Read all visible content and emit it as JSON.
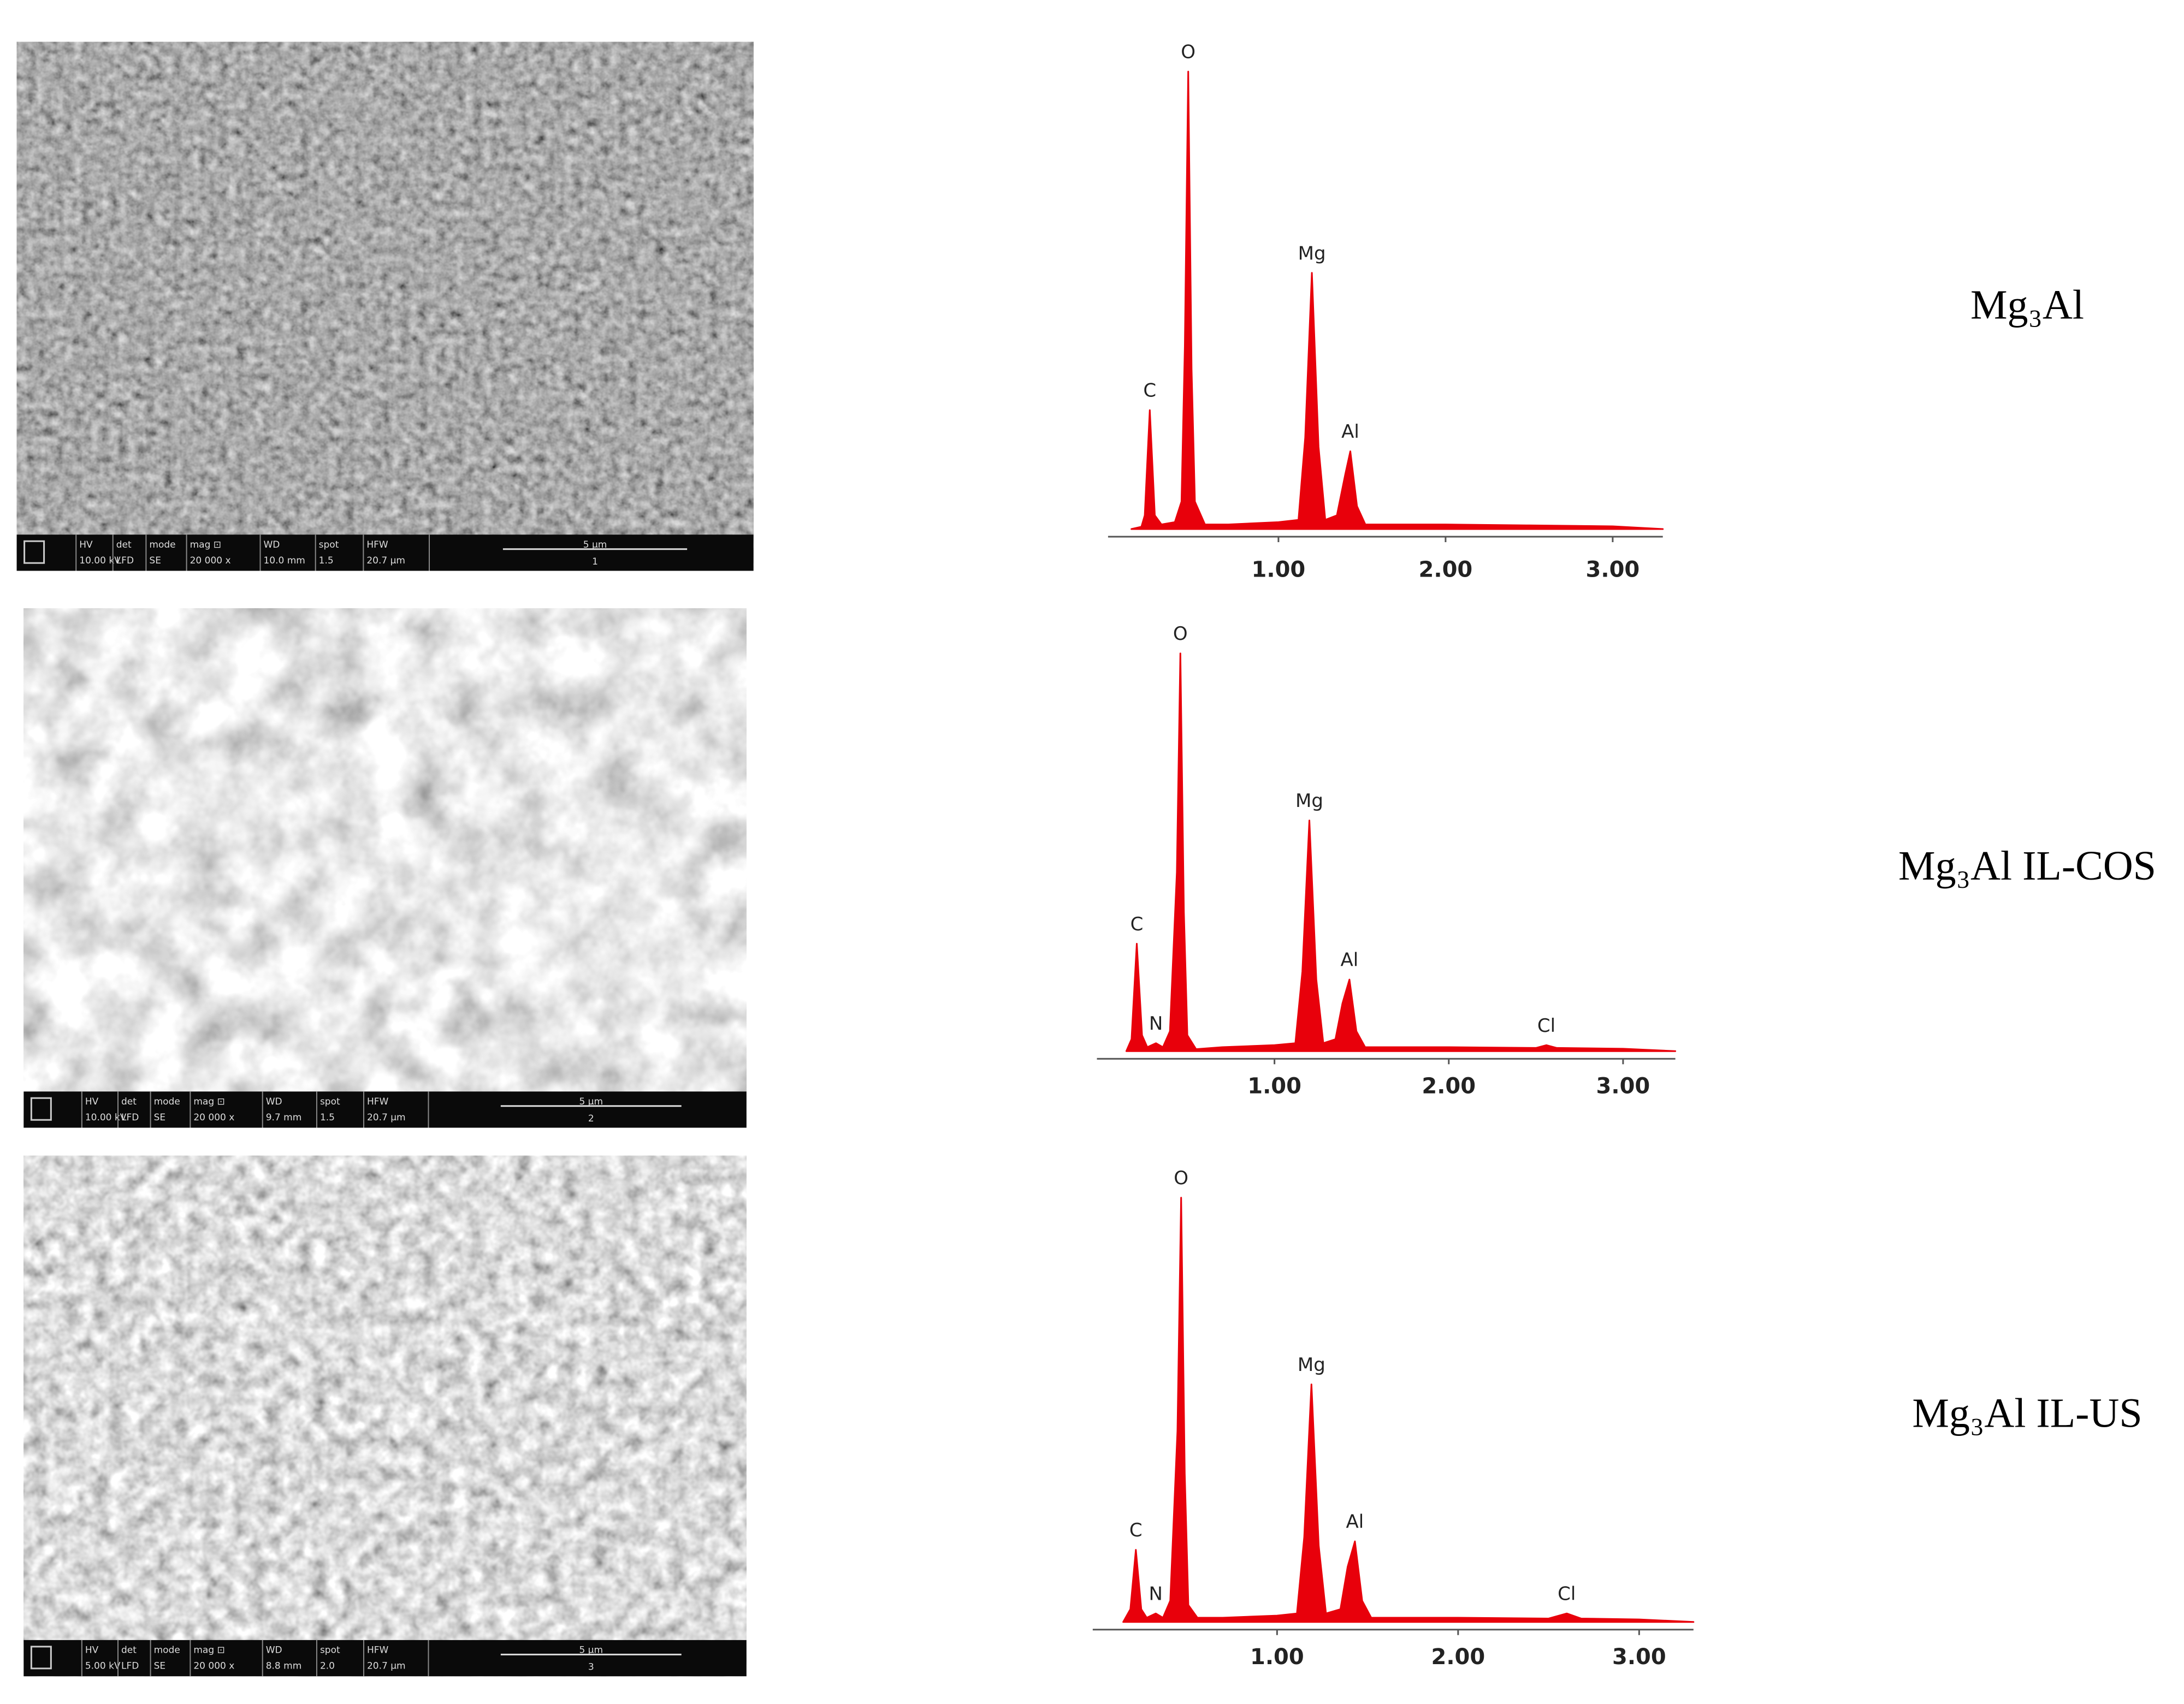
{
  "chart_data": [
    {
      "type": "area",
      "label": "Mg₃Al",
      "color": "#e8000b",
      "x": [
        0.12,
        0.18,
        0.2,
        0.23,
        0.26,
        0.3,
        0.38,
        0.42,
        0.44,
        0.46,
        0.48,
        0.5,
        0.56,
        0.7,
        1.0,
        1.12,
        1.16,
        1.2,
        1.24,
        1.28,
        1.35,
        1.4,
        1.43,
        1.47,
        1.52,
        1.7,
        2.0,
        2.5,
        3.0,
        3.3
      ],
      "y": [
        0,
        0.5,
        3,
        26,
        3,
        1,
        1.5,
        6,
        40,
        100,
        35,
        6,
        1,
        1,
        1.5,
        2,
        20,
        56,
        18,
        2,
        3,
        12,
        17,
        5,
        1,
        1,
        1,
        0.8,
        0.6,
        0
      ],
      "point_labels": [
        null,
        null,
        null,
        "C",
        null,
        null,
        null,
        null,
        null,
        "O",
        null,
        null,
        null,
        null,
        null,
        null,
        null,
        "Mg",
        null,
        null,
        null,
        null,
        "Al",
        null,
        null,
        null,
        null,
        null,
        null,
        null
      ],
      "xlim": [
        0,
        3.3
      ],
      "ylim": [
        0,
        105
      ],
      "xticks": [
        {
          "value": 1,
          "label": "1.00"
        },
        {
          "value": 2,
          "label": "2.00"
        },
        {
          "value": 3,
          "label": "3.00"
        }
      ]
    },
    {
      "type": "area",
      "label": "Mg₃Al IL-COS",
      "color": "#e8000b",
      "x": [
        0.15,
        0.18,
        0.21,
        0.24,
        0.27,
        0.32,
        0.36,
        0.4,
        0.44,
        0.46,
        0.48,
        0.5,
        0.55,
        0.7,
        1.0,
        1.12,
        1.16,
        1.2,
        1.24,
        1.28,
        1.35,
        1.39,
        1.43,
        1.47,
        1.52,
        1.7,
        2.0,
        2.5,
        2.56,
        2.62,
        3.0,
        3.3
      ],
      "y": [
        0,
        3,
        27,
        4,
        1,
        2,
        1,
        5,
        45,
        100,
        35,
        4,
        0.5,
        1,
        1.5,
        2,
        20,
        58,
        18,
        2,
        3,
        12,
        18,
        5,
        1,
        1,
        1,
        0.8,
        1.5,
        0.8,
        0.6,
        0
      ],
      "point_labels": [
        null,
        null,
        "C",
        null,
        null,
        "N",
        null,
        null,
        null,
        "O",
        null,
        null,
        null,
        null,
        null,
        null,
        null,
        "Mg",
        null,
        null,
        null,
        null,
        "Al",
        null,
        null,
        null,
        null,
        null,
        "Cl",
        null,
        null,
        null
      ],
      "xlim": [
        0,
        3.3
      ],
      "ylim": [
        0,
        105
      ],
      "xticks": [
        {
          "value": 1,
          "label": "1.00"
        },
        {
          "value": 2,
          "label": "2.00"
        },
        {
          "value": 3,
          "label": "3.00"
        }
      ]
    },
    {
      "type": "area",
      "label": "Mg₃Al IL-US",
      "color": "#e8000b",
      "x": [
        0.15,
        0.19,
        0.22,
        0.25,
        0.28,
        0.33,
        0.37,
        0.41,
        0.45,
        0.47,
        0.49,
        0.51,
        0.56,
        0.7,
        1.0,
        1.11,
        1.15,
        1.19,
        1.23,
        1.27,
        1.35,
        1.39,
        1.43,
        1.47,
        1.52,
        1.7,
        2.0,
        2.5,
        2.6,
        2.68,
        3.0,
        3.3
      ],
      "y": [
        0,
        3,
        17,
        3,
        1,
        2,
        1,
        5,
        45,
        100,
        35,
        4,
        1,
        1,
        1.5,
        2,
        20,
        56,
        18,
        2,
        3,
        13,
        19,
        5,
        1,
        1,
        1,
        0.8,
        2,
        0.8,
        0.6,
        0
      ],
      "point_labels": [
        null,
        null,
        "C",
        null,
        null,
        "N",
        null,
        null,
        null,
        "O",
        null,
        null,
        null,
        null,
        null,
        null,
        null,
        "Mg",
        null,
        null,
        null,
        null,
        "Al",
        null,
        null,
        null,
        null,
        null,
        "Cl",
        null,
        null,
        null
      ],
      "xlim": [
        0,
        3.3
      ],
      "ylim": [
        0,
        105
      ],
      "xticks": [
        {
          "value": 1,
          "label": "1.00"
        },
        {
          "value": 2,
          "label": "2.00"
        },
        {
          "value": 3,
          "label": "3.00"
        }
      ]
    }
  ],
  "sem_images": [
    {
      "header": [
        "HV",
        "det",
        "mode",
        "mag ⊡",
        "WD",
        "spot",
        "HFW"
      ],
      "values": [
        "10.00 kV",
        "LFD",
        "SE",
        "20 000 x",
        "10.0 mm",
        "1.5",
        "20.7 µm"
      ],
      "scale": "5 µm",
      "id": "1"
    },
    {
      "header": [
        "HV",
        "det",
        "mode",
        "mag ⊡",
        "WD",
        "spot",
        "HFW"
      ],
      "values": [
        "10.00 kV",
        "LFD",
        "SE",
        "20 000 x",
        "9.7 mm",
        "1.5",
        "20.7 µm"
      ],
      "scale": "5 µm",
      "id": "2"
    },
    {
      "header": [
        "HV",
        "det",
        "mode",
        "mag ⊡",
        "WD",
        "spot",
        "HFW"
      ],
      "values": [
        "5.00 kV",
        "LFD",
        "SE",
        "20 000 x",
        "8.8 mm",
        "2.0",
        "20.7 µm"
      ],
      "scale": "5 µm",
      "id": "3"
    }
  ]
}
